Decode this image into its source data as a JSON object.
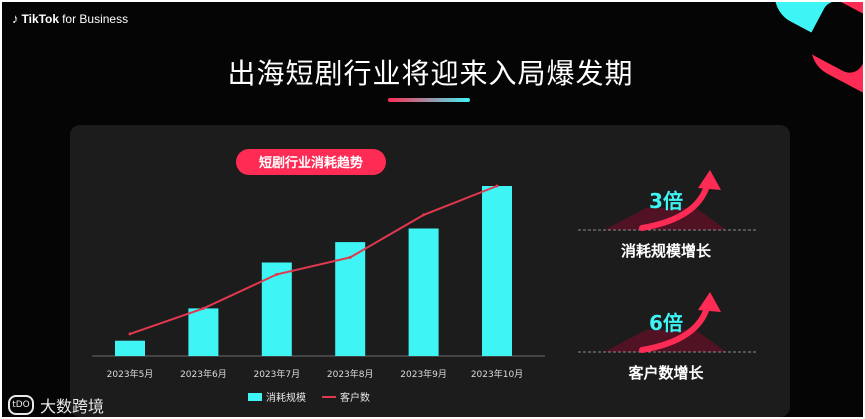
{
  "brand": {
    "logo_icon": "tiktok-note-icon",
    "name_bold": "TikTok",
    "name_rest": "for Business"
  },
  "title": "出海短剧行业将迎来入局爆发期",
  "colors": {
    "cyan": "#3ff4f4",
    "pink": "#fe2c55",
    "line": "#e0384f",
    "background": "#050505",
    "panel": "#1c1c1c"
  },
  "chart_data": {
    "type": "bar",
    "title": "短剧行业消耗趋势",
    "categories": [
      "2023年5月",
      "2023年6月",
      "2023年7月",
      "2023年8月",
      "2023年9月",
      "2023年10月"
    ],
    "ylim": [
      0,
      100
    ],
    "series": [
      {
        "name": "消耗规模",
        "type": "bar",
        "values": [
          9,
          28,
          55,
          67,
          75,
          100
        ]
      },
      {
        "name": "客户数",
        "type": "line",
        "values": [
          13,
          28,
          48,
          58,
          83,
          100
        ]
      }
    ],
    "legend_position": "bottom-center",
    "grid": false
  },
  "highlights": [
    {
      "value": "3倍",
      "label": "消耗规模增长",
      "icon": "up-arrow-icon"
    },
    {
      "value": "6倍",
      "label": "客户数增长",
      "icon": "up-arrow-icon"
    }
  ],
  "watermark": {
    "logo_text": "tDO",
    "text": "大数跨境"
  }
}
